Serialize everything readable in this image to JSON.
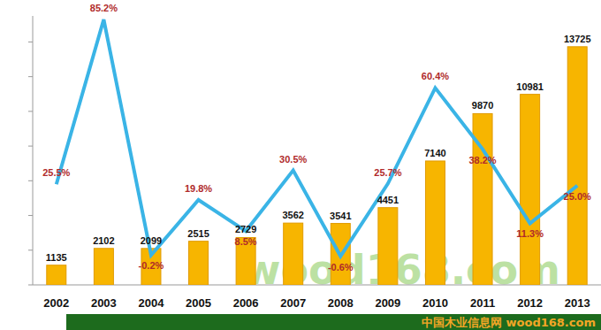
{
  "chart_data": {
    "type": "bar",
    "categories": [
      "2002",
      "2003",
      "2004",
      "2005",
      "2006",
      "2007",
      "2008",
      "2009",
      "2010",
      "2011",
      "2012",
      "2013"
    ],
    "series": [
      {
        "type": "bar",
        "color": "#f7b500",
        "values": [
          1135,
          2102,
          2099,
          2515,
          2729,
          3562,
          3541,
          4451,
          7140,
          9870,
          10981,
          13725
        ]
      },
      {
        "type": "line",
        "color": "#3ab4e6",
        "axis": "y2",
        "values": [
          25.5,
          85.2,
          -0.2,
          19.8,
          8.5,
          30.5,
          -0.6,
          25.7,
          60.4,
          38.2,
          11.3,
          25.0
        ],
        "value_labels": [
          "25.5%",
          "85.2%",
          "-0.2%",
          "19.8%",
          "8.5%",
          "30.5%",
          "-0.6%",
          "25.7%",
          "60.4%",
          "38.2%",
          "11.3%",
          "25.0%"
        ]
      }
    ],
    "ylim": [
      0,
      15500
    ],
    "yticks": [
      0,
      2000,
      4000,
      6000,
      8000,
      10000,
      12000,
      14000
    ],
    "y2lim": [
      -11,
      86.5
    ],
    "grid": false,
    "data_labels": true,
    "tick_labels": "x",
    "annotations": [
      "wood168.com",
      "中国木业信息网 wood168.com"
    ]
  }
}
